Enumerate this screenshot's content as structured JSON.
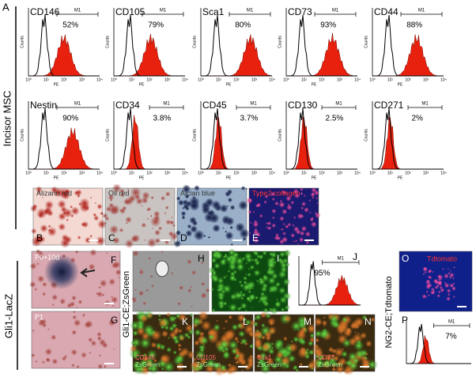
{
  "panel_a": {
    "letter": "A",
    "y_axis": "Counts",
    "x_axis": "PE",
    "x_ticks": [
      "10⁰",
      "10¹",
      "10²",
      "10³",
      "10⁴"
    ],
    "histograms": [
      {
        "marker": "CD146",
        "gate": "M1",
        "percent": "52%"
      },
      {
        "marker": "CD105",
        "gate": "M1",
        "percent": "79%"
      },
      {
        "marker": "Sca1",
        "gate": "M1",
        "percent": "80%"
      },
      {
        "marker": "CD73",
        "gate": "M1",
        "percent": "93%"
      },
      {
        "marker": "CD44",
        "gate": "M1",
        "percent": "88%"
      },
      {
        "marker": "Nestin",
        "gate": "M1",
        "percent": "90%"
      },
      {
        "marker": "CD34",
        "gate": "M1",
        "percent": "3.8%"
      },
      {
        "marker": "CD45",
        "gate": "M1",
        "percent": "3.7%"
      },
      {
        "marker": "CD130",
        "gate": "M1",
        "percent": "2.5%"
      },
      {
        "marker": "CD271",
        "gate": "M1",
        "percent": "2%"
      }
    ]
  },
  "side_labels": [
    "Incisor MSC",
    "Gli1-LacZ",
    "Gli1-CE;ZsGreen",
    "NG2-CE;Tdtomato"
  ],
  "stains": [
    {
      "letter": "B",
      "label": "Alizarin red"
    },
    {
      "letter": "C",
      "label": "Oil red"
    },
    {
      "letter": "D",
      "label": "Alcian blue"
    },
    {
      "letter": "E",
      "label": "Type2 collagen"
    }
  ],
  "lacz": [
    {
      "letter": "F",
      "label": "P0+10d"
    },
    {
      "letter": "G",
      "label": "P1"
    }
  ],
  "zsgreen": {
    "letters": [
      "H",
      "I"
    ],
    "flow": {
      "letter": "J",
      "gate": "M1",
      "percent": "95%"
    },
    "overlays": [
      {
        "letter": "K",
        "marker": "CD146",
        "reporter": "ZsGreen"
      },
      {
        "letter": "L",
        "marker": "CD105",
        "reporter": "ZsGreen"
      },
      {
        "letter": "M",
        "marker": "Sca1",
        "reporter": "ZsGreen"
      },
      {
        "letter": "N",
        "marker": "CD73",
        "reporter": "ZsGreen"
      }
    ]
  },
  "ng2": {
    "image": {
      "letter": "O",
      "label": "Tdtomato"
    },
    "flow": {
      "letter": "P",
      "gate": "M1",
      "percent": "7%"
    }
  }
}
